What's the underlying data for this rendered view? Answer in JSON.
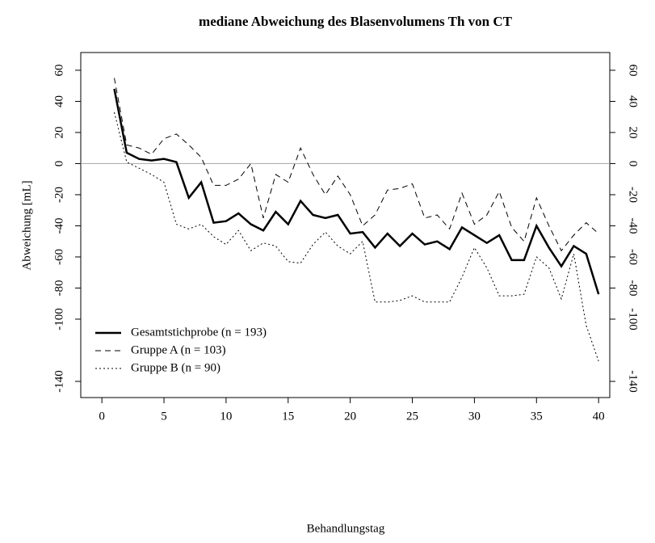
{
  "chart_data": {
    "type": "line",
    "title": "mediane Abweichung des Blasenvolumens Th von CT",
    "xlabel": "Behandlungstag",
    "ylabel": "Abweichung [mL]",
    "x": [
      1,
      2,
      3,
      4,
      5,
      6,
      7,
      8,
      9,
      10,
      11,
      12,
      13,
      14,
      15,
      16,
      17,
      18,
      19,
      20,
      21,
      22,
      23,
      24,
      25,
      26,
      27,
      28,
      29,
      30,
      31,
      32,
      33,
      34,
      35,
      36,
      37,
      38,
      39,
      40
    ],
    "series": [
      {
        "name": "Gesamtstichprobe (n = 193)",
        "color": "#000000",
        "style": "solid",
        "linewidth": 2.5,
        "values": [
          48,
          7,
          3,
          2,
          3,
          1,
          -22,
          -12,
          -38,
          -37,
          -32,
          -39,
          -43,
          -31,
          -39,
          -24,
          -33,
          -35,
          -33,
          -45,
          -44,
          -54,
          -45,
          -53,
          -45,
          -52,
          -50,
          -55,
          -41,
          -46,
          -51,
          -46,
          -62,
          -62,
          -40,
          -54,
          -66,
          -53,
          -58,
          -84
        ]
      },
      {
        "name": "Gruppe A (n = 103)",
        "color": "#000000",
        "style": "dashed",
        "linewidth": 1,
        "values": [
          55,
          12,
          10,
          6,
          16,
          19,
          12,
          4,
          -14,
          -14,
          -10,
          0,
          -35,
          -7,
          -12,
          10,
          -7,
          -20,
          -8,
          -20,
          -40,
          -33,
          -17,
          -16,
          -13,
          -35,
          -33,
          -42,
          -19,
          -39,
          -33,
          -18,
          -41,
          -50,
          -22,
          -40,
          -56,
          -46,
          -38,
          -45
        ]
      },
      {
        "name": "Gruppe B (n = 90)",
        "color": "#000000",
        "style": "dotted",
        "linewidth": 1,
        "values": [
          33,
          1,
          -3,
          -7,
          -12,
          -39,
          -42,
          -39,
          -47,
          -52,
          -43,
          -56,
          -51,
          -53,
          -63,
          -64,
          -52,
          -44,
          -53,
          -58,
          -50,
          -89,
          -89,
          -88,
          -85,
          -89,
          -89,
          -89,
          -73,
          -54,
          -67,
          -85,
          -85,
          -84,
          -60,
          -67,
          -87,
          -58,
          -104,
          -127
        ]
      }
    ],
    "xlim": [
      -1.7,
      40.9
    ],
    "xticks": [
      0,
      5,
      10,
      15,
      20,
      25,
      30,
      35,
      40
    ],
    "ylim": [
      -150.4,
      71.4
    ],
    "yticks": [
      60,
      40,
      20,
      0,
      -20,
      -40,
      -60,
      -80,
      -100,
      -140
    ],
    "y2lim": [
      -150.4,
      71.4
    ],
    "y2ticks": [
      60,
      40,
      20,
      0,
      -20,
      -40,
      -60,
      -80,
      -100,
      -140
    ],
    "hline": 0,
    "hline_color": "#b0b0b0",
    "legend": "bottom-left"
  }
}
